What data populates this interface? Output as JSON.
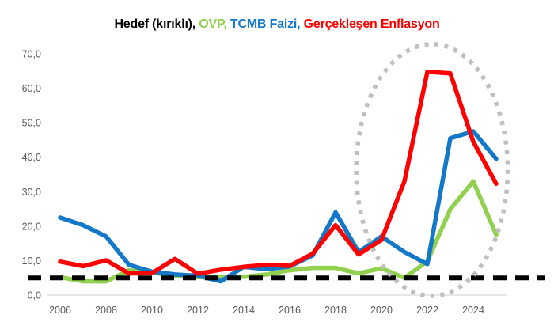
{
  "title": {
    "segments": [
      {
        "text": "Hedef (kırıklı),",
        "color": "#000000"
      },
      {
        "text": " OVP,",
        "color": "#92d050"
      },
      {
        "text": " TCMB Faizi,",
        "color": "#1478c8"
      },
      {
        "text": " Gerçekleşen Enflasyon",
        "color": "#ff0000"
      }
    ]
  },
  "chart_data": {
    "type": "line",
    "title": "Hedef (kırıklı), OVP, TCMB Faizi, Gerçekleşen Enflasyon",
    "x": [
      2006,
      2007,
      2008,
      2009,
      2010,
      2011,
      2012,
      2013,
      2014,
      2015,
      2016,
      2017,
      2018,
      2019,
      2020,
      2021,
      2022,
      2023,
      2024,
      2025
    ],
    "x_tick_labels": [
      "2006",
      "2008",
      "2010",
      "2012",
      "2014",
      "2016",
      "2018",
      "2020",
      "2022",
      "2024"
    ],
    "x_tick_years": [
      2006,
      2008,
      2010,
      2012,
      2014,
      2016,
      2018,
      2020,
      2022,
      2024
    ],
    "y_tick_labels": [
      "0,0",
      "10,0",
      "20,0",
      "30,0",
      "40,0",
      "50,0",
      "60,0",
      "70,0"
    ],
    "y_tick_values": [
      0,
      10,
      20,
      30,
      40,
      50,
      60,
      70
    ],
    "ylim": [
      0,
      70
    ],
    "grid": false,
    "legend_position": "inline-title",
    "series": [
      {
        "name": "Hedef (kırıklı)",
        "role": "hedef",
        "style": "dashed",
        "color": "#000000",
        "values": [
          5,
          5,
          5,
          5,
          5,
          5,
          5,
          5,
          5,
          5,
          5,
          5,
          5,
          5,
          5,
          5,
          5,
          5,
          5,
          5
        ]
      },
      {
        "name": "OVP",
        "role": "ovp",
        "style": "solid",
        "color": "#92d050",
        "values": [
          5.2,
          4.0,
          4.0,
          7.2,
          6.6,
          5.5,
          5.2,
          5.2,
          5.3,
          6.0,
          7.2,
          7.9,
          7.9,
          6.3,
          7.8,
          5.0,
          9.8,
          24.9,
          33.0,
          17.5
        ]
      },
      {
        "name": "TCMB Faizi",
        "role": "tcmb",
        "style": "solid",
        "color": "#1478c8",
        "values": [
          22.5,
          20.3,
          17.0,
          8.8,
          6.8,
          6.0,
          5.6,
          4.0,
          8.2,
          7.5,
          8.3,
          11.5,
          24.0,
          12.5,
          17.0,
          12.5,
          9.0,
          45.5,
          47.5,
          39.5
        ]
      },
      {
        "name": "Gerçekleşen Enflasyon",
        "role": "enflasyon",
        "style": "solid",
        "color": "#ff0000",
        "values": [
          9.7,
          8.4,
          10.1,
          6.3,
          6.4,
          10.5,
          6.2,
          7.4,
          8.2,
          8.8,
          8.5,
          12.0,
          20.3,
          11.8,
          16.0,
          33.0,
          64.8,
          64.3,
          44.5,
          32.3
        ]
      }
    ],
    "annotation": {
      "shape": "dotted-ellipse",
      "color": "#bfbfbf",
      "center_x_year": 2022.2,
      "center_y_value": 36.3,
      "radius_x_years": 3.3,
      "radius_y_values": 36.5
    },
    "axis_line_color": "#d9d9d9"
  }
}
